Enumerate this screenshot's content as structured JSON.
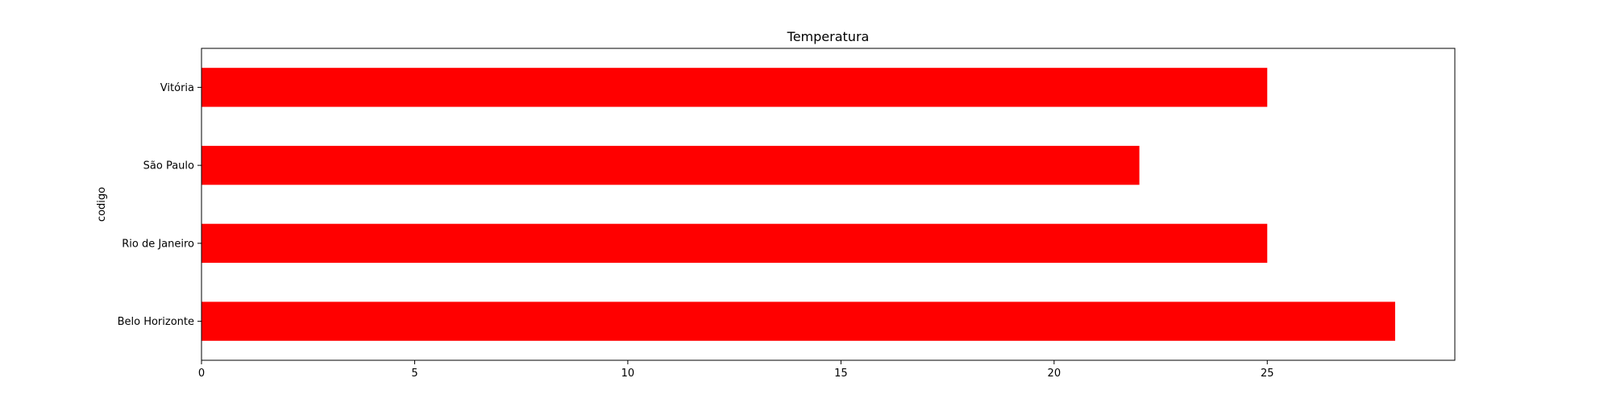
{
  "chart_data": {
    "type": "bar",
    "orientation": "horizontal",
    "title": "Temperatura",
    "xlabel": "",
    "ylabel": "codigo",
    "categories": [
      "Belo Horizonte",
      "Rio de Janeiro",
      "São Paulo",
      "Vitória"
    ],
    "values": [
      28,
      25,
      22,
      25
    ],
    "xlim": [
      0,
      29.4
    ],
    "xticks": [
      0,
      5,
      10,
      15,
      20,
      25
    ],
    "bar_color": "#ff0000",
    "grid": false,
    "legend": "none"
  }
}
